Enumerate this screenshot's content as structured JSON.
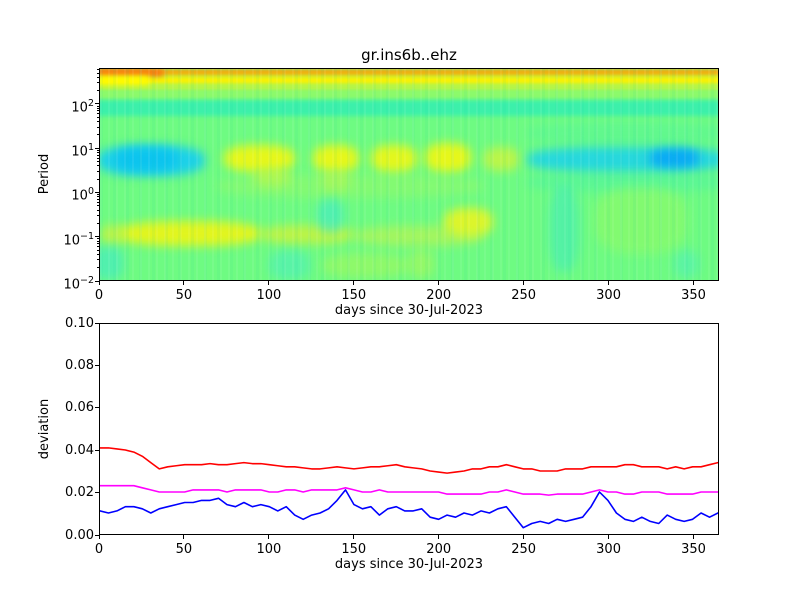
{
  "figure": {
    "background": "#ffffff"
  },
  "chart_data": [
    {
      "type": "heatmap",
      "title": "gr.ins6b..ehz",
      "xlabel": "days since 30-Jul-2023",
      "ylabel": "Period",
      "x_ticks": [
        0,
        50,
        100,
        150,
        200,
        250,
        300,
        350
      ],
      "x_range": [
        0,
        365
      ],
      "y_scale": "log",
      "y_tick_exponents": [
        2,
        1,
        0,
        -1,
        -2
      ],
      "y_range": [
        0.01,
        650
      ],
      "grid": false,
      "legend": false,
      "colormap_note": "rainbow: blue=low, cyan, green, yellow, orange=high",
      "background_color": "#6efb82",
      "bands": [
        {
          "period": [
            450,
            650
          ],
          "color": "#ffa305",
          "note": "orange top stripe"
        },
        {
          "period": [
            280,
            450
          ],
          "color": "#fdf100",
          "note": "yellow stripe"
        },
        {
          "period": [
            210,
            280
          ],
          "color": "#c6f43b",
          "note": "yellow-green stripe"
        },
        {
          "period": [
            130,
            210
          ],
          "color": "#8efa69",
          "note": "light green stripe"
        },
        {
          "period": [
            56,
            130
          ],
          "color": "#3cf0aa",
          "note": "teal stripe"
        }
      ],
      "features": [
        {
          "days": [
            -4,
            37
          ],
          "period": [
            450,
            650
          ],
          "color": "#f9740f",
          "shape": "band"
        },
        {
          "days": [
            -4,
            29
          ],
          "period": [
            280,
            450
          ],
          "color": "#fffb00",
          "shape": "band"
        },
        {
          "days": [
            -2,
            62
          ],
          "period": [
            2.3,
            12
          ],
          "color": "#1ed2e8"
        },
        {
          "days": [
            9,
            46
          ],
          "period": [
            3,
            10
          ],
          "color": "#0cc4ee"
        },
        {
          "days": [
            73,
            115
          ],
          "period": [
            2.9,
            12
          ],
          "color": "#e6f71a"
        },
        {
          "days": [
            91,
            113
          ],
          "period": [
            1.3,
            3.6
          ],
          "color": "#c8f53e",
          "opacity": 0.7
        },
        {
          "days": [
            126,
            153
          ],
          "period": [
            2.9,
            12
          ],
          "color": "#e6f71a"
        },
        {
          "days": [
            130,
            148
          ],
          "period": [
            1.1,
            3.2
          ],
          "color": "#c0f448",
          "opacity": 0.6
        },
        {
          "days": [
            160,
            187
          ],
          "period": [
            2.9,
            12
          ],
          "color": "#e3f71d"
        },
        {
          "days": [
            192,
            219
          ],
          "period": [
            2.9,
            13
          ],
          "color": "#e6f71a"
        },
        {
          "days": [
            226,
            248
          ],
          "period": [
            3,
            11
          ],
          "color": "#cdf43a",
          "opacity": 0.8
        },
        {
          "days": [
            252,
            372
          ],
          "period": [
            2.8,
            11.5
          ],
          "color": "#27d8dc"
        },
        {
          "days": [
            325,
            354
          ],
          "period": [
            3.6,
            10
          ],
          "color": "#0aaaf4"
        },
        {
          "days": [
            252,
            372
          ],
          "period": [
            1.0,
            2.9
          ],
          "color": "#4df3a3",
          "opacity": 0.55
        },
        {
          "days": [
            252,
            372
          ],
          "period": [
            12,
            41
          ],
          "color": "#52f59b",
          "opacity": 0.45
        },
        {
          "days": [
            69,
            226
          ],
          "period": [
            0.74,
            2.6
          ],
          "color": "#a3f95c",
          "opacity": 0.4
        },
        {
          "days": [
            11,
            95
          ],
          "period": [
            0.06,
            0.22
          ],
          "color": "#e2f51e"
        },
        {
          "days": [
            0,
            15
          ],
          "period": [
            0.065,
            0.18
          ],
          "color": "#c9f23c",
          "opacity": 0.8
        },
        {
          "days": [
            95,
            150
          ],
          "period": [
            0.065,
            0.18
          ],
          "color": "#c9f23c",
          "opacity": 0.85
        },
        {
          "days": [
            150,
            226
          ],
          "period": [
            0.059,
            0.17
          ],
          "color": "#b9f450",
          "opacity": 0.7
        },
        {
          "days": [
            203,
            232
          ],
          "period": [
            0.1,
            0.43
          ],
          "color": "#dcf52b"
        },
        {
          "days": [
            -4,
            14
          ],
          "period": [
            0.01,
            0.06
          ],
          "color": "#3fe9cb",
          "opacity": 0.6
        },
        {
          "days": [
            100,
            124
          ],
          "period": [
            0.01,
            0.048
          ],
          "color": "#45ecca",
          "opacity": 0.5
        },
        {
          "days": [
            128,
            144
          ],
          "period": [
            0.12,
            0.69
          ],
          "color": "#3fe9cc",
          "opacity": 0.6
        },
        {
          "days": [
            265,
            283
          ],
          "period": [
            0.015,
            1.4
          ],
          "color": "#3ae9c6",
          "opacity": 0.5
        },
        {
          "days": [
            339,
            354
          ],
          "period": [
            0.011,
            0.048
          ],
          "color": "#45ecca",
          "opacity": 0.45
        },
        {
          "days": [
            131,
            182
          ],
          "period": [
            0.011,
            0.042
          ],
          "color": "#aef752",
          "opacity": 0.5
        },
        {
          "days": [
            292,
            347
          ],
          "period": [
            0.04,
            1.3
          ],
          "color": "#97fa60",
          "opacity": 0.5
        },
        {
          "days": [
            182,
            197
          ],
          "period": [
            0.011,
            0.048
          ],
          "color": "#b8f64e",
          "opacity": 0.5
        }
      ]
    },
    {
      "type": "line",
      "xlabel": "days since 30-Jul-2023",
      "ylabel": "deviation",
      "x_ticks": [
        0,
        50,
        100,
        150,
        200,
        250,
        300,
        350
      ],
      "y_ticks": [
        "0.00",
        "0.02",
        "0.04",
        "0.06",
        "0.08",
        "0.10"
      ],
      "xlim": [
        0,
        365
      ],
      "ylim": [
        0,
        0.1
      ],
      "grid": false,
      "legend": false,
      "day_start": 0,
      "day_step": 5,
      "series": [
        {
          "name": "red",
          "color": "#ff0000",
          "values": [
            0.041,
            0.041,
            0.0405,
            0.04,
            0.039,
            0.037,
            0.034,
            0.031,
            0.032,
            0.0325,
            0.033,
            0.033,
            0.033,
            0.0335,
            0.033,
            0.033,
            0.0335,
            0.034,
            0.0335,
            0.0335,
            0.033,
            0.0325,
            0.032,
            0.032,
            0.0315,
            0.031,
            0.031,
            0.0315,
            0.032,
            0.0315,
            0.031,
            0.0315,
            0.032,
            0.032,
            0.0325,
            0.033,
            0.032,
            0.0315,
            0.031,
            0.03,
            0.0295,
            0.029,
            0.0295,
            0.03,
            0.031,
            0.031,
            0.032,
            0.032,
            0.033,
            0.032,
            0.031,
            0.031,
            0.03,
            0.03,
            0.03,
            0.031,
            0.031,
            0.031,
            0.032,
            0.032,
            0.032,
            0.032,
            0.033,
            0.033,
            0.032,
            0.032,
            0.032,
            0.031,
            0.032,
            0.031,
            0.032,
            0.032,
            0.033,
            0.034
          ]
        },
        {
          "name": "magenta",
          "color": "#ff00ff",
          "values": [
            0.023,
            0.023,
            0.023,
            0.023,
            0.023,
            0.022,
            0.021,
            0.02,
            0.02,
            0.02,
            0.02,
            0.021,
            0.021,
            0.021,
            0.021,
            0.02,
            0.021,
            0.021,
            0.021,
            0.021,
            0.02,
            0.02,
            0.021,
            0.021,
            0.02,
            0.021,
            0.021,
            0.021,
            0.021,
            0.022,
            0.021,
            0.02,
            0.02,
            0.021,
            0.02,
            0.02,
            0.02,
            0.02,
            0.02,
            0.02,
            0.02,
            0.019,
            0.019,
            0.019,
            0.019,
            0.019,
            0.02,
            0.02,
            0.021,
            0.02,
            0.019,
            0.019,
            0.019,
            0.0185,
            0.019,
            0.019,
            0.019,
            0.019,
            0.02,
            0.021,
            0.02,
            0.02,
            0.019,
            0.019,
            0.02,
            0.02,
            0.02,
            0.019,
            0.019,
            0.019,
            0.019,
            0.02,
            0.02,
            0.02
          ]
        },
        {
          "name": "blue",
          "color": "#0000ff",
          "values": [
            0.011,
            0.01,
            0.011,
            0.013,
            0.013,
            0.012,
            0.01,
            0.012,
            0.013,
            0.014,
            0.015,
            0.015,
            0.016,
            0.016,
            0.017,
            0.014,
            0.013,
            0.015,
            0.013,
            0.014,
            0.013,
            0.011,
            0.013,
            0.009,
            0.007,
            0.009,
            0.01,
            0.012,
            0.016,
            0.021,
            0.014,
            0.012,
            0.013,
            0.009,
            0.012,
            0.013,
            0.011,
            0.011,
            0.012,
            0.008,
            0.007,
            0.009,
            0.008,
            0.01,
            0.009,
            0.011,
            0.01,
            0.012,
            0.013,
            0.008,
            0.003,
            0.005,
            0.006,
            0.005,
            0.007,
            0.006,
            0.007,
            0.008,
            0.013,
            0.02,
            0.016,
            0.01,
            0.007,
            0.006,
            0.008,
            0.006,
            0.005,
            0.009,
            0.007,
            0.006,
            0.007,
            0.01,
            0.008,
            0.01
          ]
        }
      ]
    }
  ]
}
